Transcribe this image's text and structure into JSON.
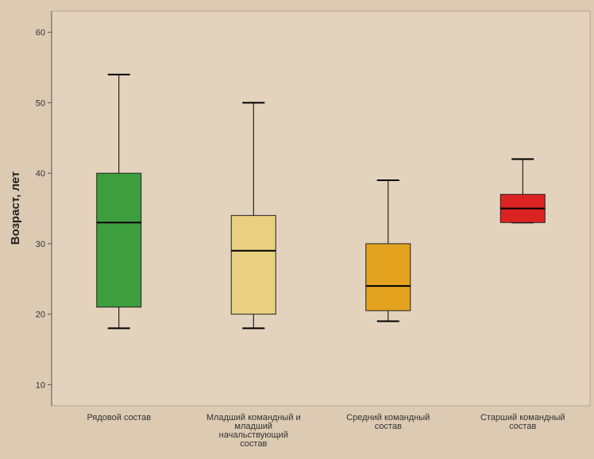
{
  "chart_data": {
    "type": "boxplot",
    "ylabel": "Возраст, лет",
    "ylim": [
      7,
      63
    ],
    "yticks": [
      10,
      20,
      30,
      40,
      50,
      60
    ],
    "grid": false,
    "categories": [
      "Рядовой состав",
      "Младший командный и младший начальствующий состав",
      "Средний командный состав",
      "Старший командный состав"
    ],
    "category_label_lines": [
      [
        "Рядовой состав"
      ],
      [
        "Младший командный и",
        "младший",
        "начальствующий",
        "состав"
      ],
      [
        "Средний командный",
        "состав"
      ],
      [
        "Старший командный",
        "состав"
      ]
    ],
    "boxes": [
      {
        "min": 18,
        "q1": 21,
        "median": 33,
        "q3": 40,
        "max": 54,
        "color": "#3d9e3d"
      },
      {
        "min": 18,
        "q1": 20,
        "median": 29,
        "q3": 34,
        "max": 50,
        "color": "#e8d080"
      },
      {
        "min": 19,
        "q1": 20.5,
        "median": 24,
        "q3": 30,
        "max": 39,
        "color": "#e3a31f"
      },
      {
        "min": 33,
        "q1": 33,
        "median": 35,
        "q3": 37,
        "max": 42,
        "color": "#dd2222"
      }
    ],
    "colors": {
      "background": "#dccab3",
      "plot_area": "#e3d3bd",
      "axis": "#555555",
      "line": "#000000"
    }
  }
}
